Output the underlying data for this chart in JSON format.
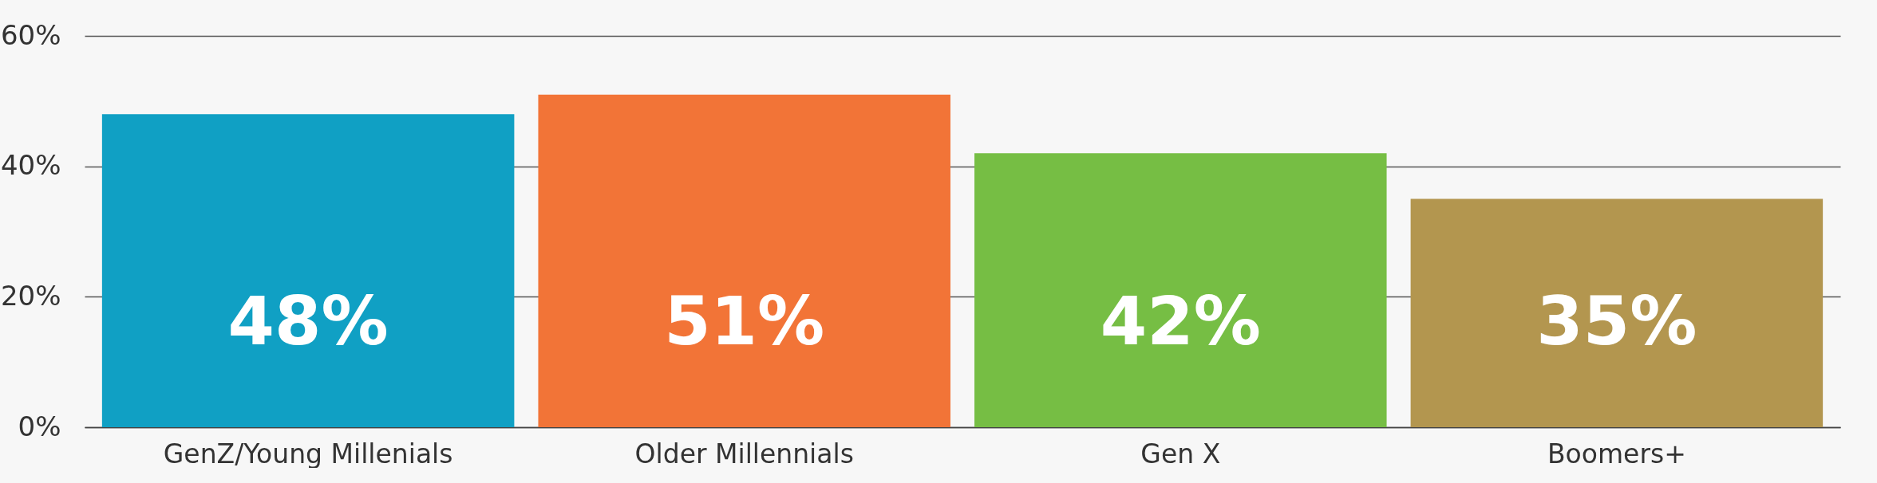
{
  "chart_data": {
    "type": "bar",
    "categories": [
      "GenZ/Young Millenials",
      "Older Millennials",
      "Gen X",
      "Boomers+"
    ],
    "values": [
      48,
      51,
      42,
      35
    ],
    "colors": [
      "#10a0c4",
      "#f27437",
      "#76be44",
      "#b3964f"
    ],
    "ylim": [
      0,
      60
    ],
    "yticks": [
      {
        "value": 0,
        "label": "0%"
      },
      {
        "value": 20,
        "label": "20%"
      },
      {
        "value": 40,
        "label": "40%"
      },
      {
        "value": 60,
        "label": "60%"
      }
    ],
    "value_labels": [
      "48%",
      "51%",
      "42%",
      "35%"
    ],
    "grid": "y"
  }
}
